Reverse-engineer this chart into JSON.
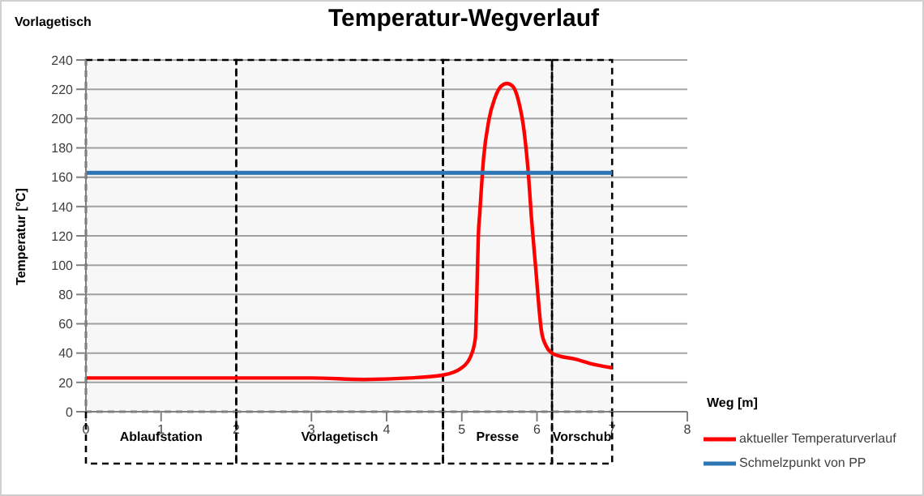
{
  "chart_data": {
    "type": "line",
    "title": "Temperatur-Wegverlauf",
    "xlabel": "Weg [m]",
    "ylabel": "Temperatur [°C]",
    "annotations": [
      "Vorlagetisch"
    ],
    "xlim": [
      0,
      8
    ],
    "xticks": [
      0,
      1,
      2,
      3,
      4,
      5,
      6,
      7,
      8
    ],
    "ylim": [
      0,
      240
    ],
    "yticks": [
      0,
      20,
      40,
      60,
      80,
      100,
      120,
      140,
      160,
      180,
      200,
      220,
      240
    ],
    "grid": "y",
    "legend": "bottom right",
    "marker": "none",
    "series": [
      {
        "name": "aktueller Temperaturverlauf",
        "color": "#ff0000",
        "x": [
          0,
          1,
          2,
          3,
          3.7,
          4.3,
          4.75,
          5.0,
          5.12,
          5.18,
          5.2,
          5.22,
          5.24,
          5.29,
          5.36,
          5.44,
          5.52,
          5.6,
          5.68,
          5.75,
          5.83,
          5.88,
          5.93,
          5.98,
          6.06,
          6.12,
          6.2,
          6.3,
          6.5,
          6.7,
          7.0
        ],
        "values": [
          23,
          23,
          23,
          23,
          22,
          23,
          25,
          30,
          38,
          50,
          80,
          120,
          136,
          173,
          199,
          214,
          222,
          224,
          222,
          213,
          191,
          166,
          130,
          100,
          55,
          45,
          40,
          38,
          36,
          33,
          30
        ]
      },
      {
        "name": "Schmelzpunkt von PP",
        "color": "#2e75b6",
        "x": [
          0,
          7
        ],
        "values": [
          163,
          163
        ]
      }
    ],
    "bands": [
      {
        "axis": "x",
        "from": 0,
        "to": 2,
        "label": "Ablaufstation",
        "color": "#000000"
      },
      {
        "axis": "x",
        "from": 2,
        "to": 4.75,
        "label": "Vorlagetisch",
        "color": "#000000"
      },
      {
        "axis": "x",
        "from": 4.75,
        "to": 6.2,
        "label": "Presse",
        "color": "#000000"
      },
      {
        "axis": "x",
        "from": 6.2,
        "to": 7,
        "label": "Vorschub",
        "color": "#000000"
      }
    ]
  }
}
